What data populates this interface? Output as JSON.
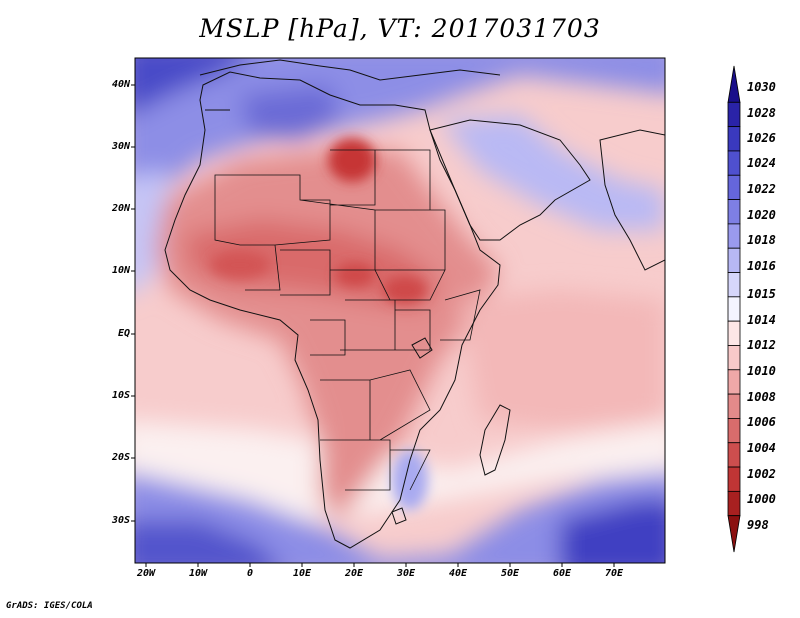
{
  "title": "MSLP [hPa], VT: 2017031703",
  "credit": "GrADS: IGES/COLA",
  "lat_labels": [
    "40N",
    "30N",
    "20N",
    "10N",
    "EQ",
    "10S",
    "20S",
    "30S"
  ],
  "lon_labels": [
    "20W",
    "10W",
    "0",
    "10E",
    "20E",
    "30E",
    "40E",
    "50E",
    "60E",
    "70E"
  ],
  "colorbar": {
    "levels": [
      "1030",
      "1028",
      "1026",
      "1024",
      "1022",
      "1020",
      "1018",
      "1016",
      "1015",
      "1014",
      "1012",
      "1010",
      "1008",
      "1006",
      "1004",
      "1002",
      "1000",
      "998"
    ],
    "colors": [
      "#1a0f8a",
      "#2a23a8",
      "#3a39be",
      "#4f50cf",
      "#6566db",
      "#7e7fe4",
      "#9a9aee",
      "#b7b8f5",
      "#d6d6fb",
      "#f4f4ff",
      "#fde6e6",
      "#f8c9c9",
      "#efa8a8",
      "#e38a8a",
      "#d96c6c",
      "#cd4e4e",
      "#c03535",
      "#a82020",
      "#8b1010"
    ]
  },
  "map_colors": {
    "ocean_high": "#6f6fda",
    "ocean_mid": "#b8b9f4",
    "neutral": "#fbeaea",
    "land_low": "#e79393",
    "land_lower": "#d96b6b",
    "low_center": "#c93a3a",
    "boundary": "#111111"
  }
}
